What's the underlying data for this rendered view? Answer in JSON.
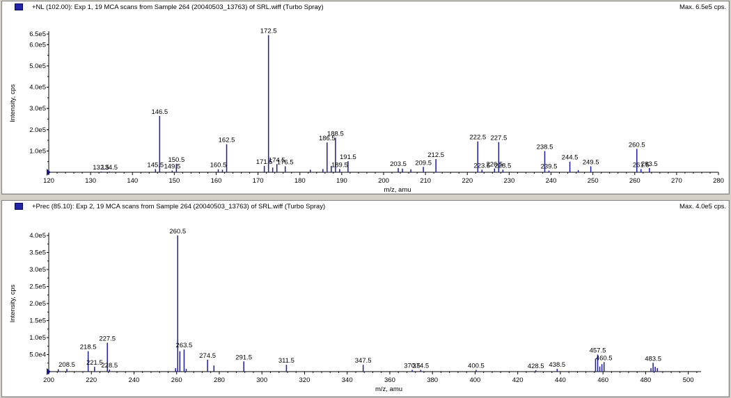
{
  "colors": {
    "peak": "#1c1ca0",
    "axis": "#000000",
    "marker": "#2424a8",
    "background": "#d4d0c8"
  },
  "chart_data": [
    {
      "type": "bar",
      "title": "+NL (102.00): Exp 1, 19 MCA scans from Sample 264 (20040503_13763) of SRL.wiff (Turbo Spray)",
      "max_label": "Max. 6.5e5 cps.",
      "xlabel": "m/z, amu",
      "ylabel": "Intensity, cps",
      "xlim": [
        120,
        280
      ],
      "ylim": [
        0,
        650000
      ],
      "xticks": [
        120,
        130,
        140,
        150,
        160,
        170,
        180,
        190,
        200,
        210,
        220,
        230,
        240,
        250,
        260,
        270,
        280
      ],
      "yticks": [
        {
          "value": 100000,
          "label": "1.0e5"
        },
        {
          "value": 200000,
          "label": "2.0e5"
        },
        {
          "value": 300000,
          "label": "3.0e5"
        },
        {
          "value": 400000,
          "label": "4.0e5"
        },
        {
          "value": 500000,
          "label": "5.0e5"
        },
        {
          "value": 600000,
          "label": "6.0e5"
        },
        {
          "value": 650000,
          "label": "6.5e5"
        }
      ],
      "peaks": [
        {
          "x": 132.5,
          "y": 3000,
          "label": "132.5"
        },
        {
          "x": 134.5,
          "y": 3000,
          "label": "134.5"
        },
        {
          "x": 145.5,
          "y": 15000,
          "label": "145.5"
        },
        {
          "x": 146.5,
          "y": 265000,
          "label": "146.5"
        },
        {
          "x": 149.5,
          "y": 8000,
          "label": "149.5"
        },
        {
          "x": 150.5,
          "y": 40000,
          "label": "150.5"
        },
        {
          "x": 160.5,
          "y": 14000,
          "label": "160.5"
        },
        {
          "x": 161.5,
          "y": 12000,
          "label": ""
        },
        {
          "x": 162.5,
          "y": 132000,
          "label": "162.5"
        },
        {
          "x": 171.5,
          "y": 30000,
          "label": "171.5"
        },
        {
          "x": 172.5,
          "y": 645000,
          "label": "172.5"
        },
        {
          "x": 173.5,
          "y": 22000,
          "label": ""
        },
        {
          "x": 174.5,
          "y": 38000,
          "label": "174.5"
        },
        {
          "x": 176.5,
          "y": 28000,
          "label": "176.5"
        },
        {
          "x": 182.5,
          "y": 12000,
          "label": ""
        },
        {
          "x": 185.5,
          "y": 15000,
          "label": ""
        },
        {
          "x": 186.5,
          "y": 140000,
          "label": "186.5"
        },
        {
          "x": 187.5,
          "y": 30000,
          "label": ""
        },
        {
          "x": 188.5,
          "y": 162000,
          "label": "188.5"
        },
        {
          "x": 189.5,
          "y": 15000,
          "label": "189.5"
        },
        {
          "x": 191.5,
          "y": 52000,
          "label": "191.5"
        },
        {
          "x": 203.5,
          "y": 20000,
          "label": "203.5"
        },
        {
          "x": 204.5,
          "y": 17000,
          "label": ""
        },
        {
          "x": 206.5,
          "y": 14000,
          "label": ""
        },
        {
          "x": 209.5,
          "y": 25000,
          "label": "209.5"
        },
        {
          "x": 212.5,
          "y": 62000,
          "label": "212.5"
        },
        {
          "x": 222.5,
          "y": 145000,
          "label": "222.5"
        },
        {
          "x": 223.5,
          "y": 12000,
          "label": "223.5"
        },
        {
          "x": 226.5,
          "y": 18000,
          "label": "226.5"
        },
        {
          "x": 227.5,
          "y": 142000,
          "label": "227.5"
        },
        {
          "x": 228.5,
          "y": 12000,
          "label": "228.5"
        },
        {
          "x": 238.5,
          "y": 100000,
          "label": "238.5"
        },
        {
          "x": 239.5,
          "y": 8000,
          "label": "239.5"
        },
        {
          "x": 244.5,
          "y": 50000,
          "label": "244.5"
        },
        {
          "x": 246.5,
          "y": 10000,
          "label": ""
        },
        {
          "x": 249.5,
          "y": 28000,
          "label": "249.5"
        },
        {
          "x": 260.5,
          "y": 110000,
          "label": "260.5"
        },
        {
          "x": 261.5,
          "y": 15000,
          "label": "261.5"
        },
        {
          "x": 263.5,
          "y": 20000,
          "label": "263.5"
        }
      ]
    },
    {
      "type": "bar",
      "title": "+Prec (85.10): Exp 2, 19 MCA scans from Sample 264 (20040503_13763) of SRL.wiff (Turbo Spray)",
      "max_label": "Max. 4.0e5 cps.",
      "xlabel": "m/z, amu",
      "ylabel": "Intensity, cps",
      "xlim": [
        200,
        506
      ],
      "ylim": [
        0,
        400000
      ],
      "xticks": [
        200,
        220,
        240,
        260,
        280,
        300,
        320,
        340,
        360,
        380,
        400,
        420,
        440,
        460,
        480,
        500
      ],
      "yticks": [
        {
          "value": 50000,
          "label": "5.0e4"
        },
        {
          "value": 100000,
          "label": "1.0e5"
        },
        {
          "value": 150000,
          "label": "1.5e5"
        },
        {
          "value": 200000,
          "label": "2.0e5"
        },
        {
          "value": 250000,
          "label": "2.5e5"
        },
        {
          "value": 300000,
          "label": "3.0e5"
        },
        {
          "value": 350000,
          "label": "3.5e5"
        },
        {
          "value": 400000,
          "label": "4.0e5"
        }
      ],
      "peaks": [
        {
          "x": 204.5,
          "y": 7000,
          "label": ""
        },
        {
          "x": 208.5,
          "y": 8000,
          "label": "208.5"
        },
        {
          "x": 218.5,
          "y": 60000,
          "label": "218.5"
        },
        {
          "x": 221.5,
          "y": 14000,
          "label": "221.5"
        },
        {
          "x": 227.5,
          "y": 85000,
          "label": "227.5"
        },
        {
          "x": 228.5,
          "y": 6000,
          "label": "228.5"
        },
        {
          "x": 259.5,
          "y": 10000,
          "label": ""
        },
        {
          "x": 260.5,
          "y": 400000,
          "label": "260.5"
        },
        {
          "x": 261.5,
          "y": 60000,
          "label": ""
        },
        {
          "x": 263.5,
          "y": 65000,
          "label": "263.5"
        },
        {
          "x": 264.5,
          "y": 8000,
          "label": ""
        },
        {
          "x": 274.5,
          "y": 35000,
          "label": "274.5"
        },
        {
          "x": 277.5,
          "y": 18000,
          "label": ""
        },
        {
          "x": 291.5,
          "y": 30000,
          "label": "291.5"
        },
        {
          "x": 311.5,
          "y": 20000,
          "label": "311.5"
        },
        {
          "x": 347.5,
          "y": 20000,
          "label": "347.5"
        },
        {
          "x": 370.5,
          "y": 5000,
          "label": "370.5"
        },
        {
          "x": 374.5,
          "y": 5000,
          "label": "374.5"
        },
        {
          "x": 400.5,
          "y": 5000,
          "label": "400.5"
        },
        {
          "x": 428.5,
          "y": 4000,
          "label": "428.5"
        },
        {
          "x": 438.5,
          "y": 8000,
          "label": "438.5"
        },
        {
          "x": 456.5,
          "y": 38000,
          "label": ""
        },
        {
          "x": 457.5,
          "y": 50000,
          "label": "457.5"
        },
        {
          "x": 458.5,
          "y": 15000,
          "label": ""
        },
        {
          "x": 459.5,
          "y": 22000,
          "label": ""
        },
        {
          "x": 460.5,
          "y": 28000,
          "label": "460.5"
        },
        {
          "x": 482.5,
          "y": 10000,
          "label": ""
        },
        {
          "x": 483.5,
          "y": 26000,
          "label": "483.5"
        },
        {
          "x": 484.5,
          "y": 14000,
          "label": ""
        },
        {
          "x": 485.5,
          "y": 10000,
          "label": ""
        }
      ]
    }
  ]
}
